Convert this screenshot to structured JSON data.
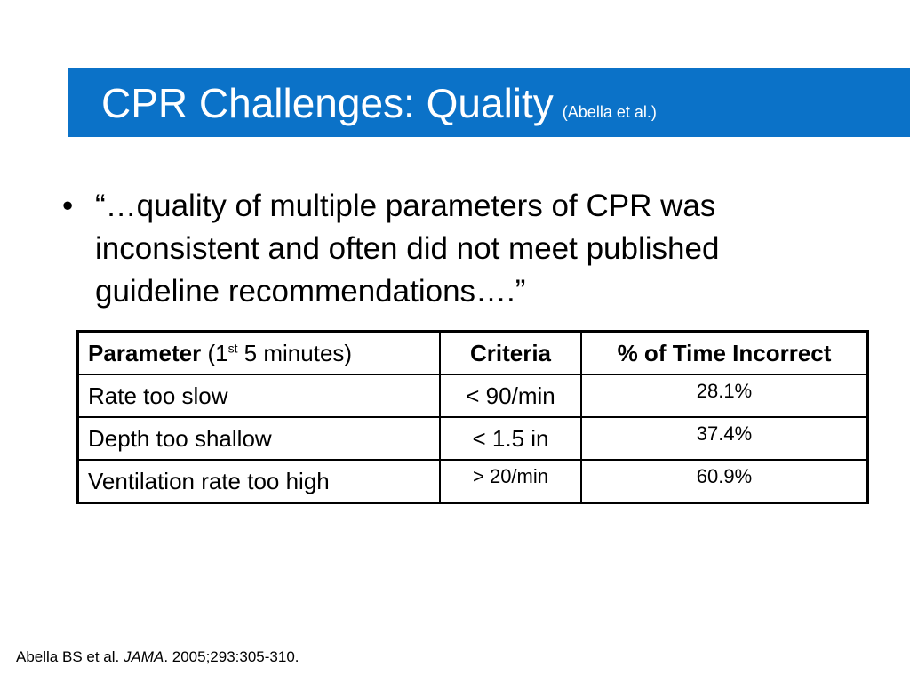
{
  "title": {
    "main": "CPR Challenges: Quality",
    "citation": "(Abella et al.)"
  },
  "bullet": {
    "symbol": "•",
    "text": "“…quality of multiple parameters of CPR was inconsistent and often did not meet published guideline recommendations….”"
  },
  "table": {
    "header": {
      "param_bold": "Parameter",
      "param_rest_pre": "(1",
      "param_sup": "st",
      "param_rest_post": " 5 minutes)",
      "criteria": "Criteria",
      "incorrect": "% of Time Incorrect"
    },
    "rows": [
      {
        "parameter": "Rate too slow",
        "criteria": "< 90/min",
        "incorrect": "28.1%"
      },
      {
        "parameter": "Depth too shallow",
        "criteria": "< 1.5 in",
        "incorrect": "37.4%"
      },
      {
        "parameter": "Ventilation rate too high",
        "criteria": "> 20/min",
        "incorrect": "60.9%"
      }
    ]
  },
  "footer": {
    "authors": "Abella BS et al. ",
    "journal": "JAMA",
    "details": ". 2005;293:305-310."
  },
  "colors": {
    "title_bar": "#0b72c8"
  }
}
